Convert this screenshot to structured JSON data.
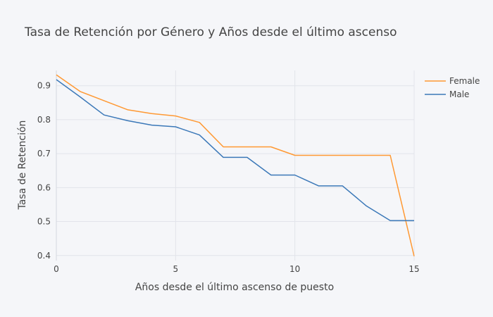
{
  "chart_data": {
    "type": "line",
    "title": "Tasa de Retención por Género y Años desde el último ascenso",
    "xlabel": "Años desde el último ascenso de puesto",
    "ylabel": "Tasa de Retención",
    "xlim": [
      0,
      15
    ],
    "ylim": [
      0.385,
      0.945
    ],
    "xticks": [
      0,
      5,
      10,
      15
    ],
    "yticks": [
      0.4,
      0.5,
      0.6,
      0.7,
      0.8,
      0.9
    ],
    "xtick_labels": [
      "0",
      "5",
      "10",
      "15"
    ],
    "ytick_labels": [
      "0.4",
      "0.5",
      "0.6",
      "0.7",
      "0.8",
      "0.9"
    ],
    "grid": true,
    "legend_position": "top-right",
    "series": [
      {
        "name": "Female",
        "color": "#ff9933",
        "x": [
          0,
          1,
          2,
          3,
          4,
          5,
          6,
          7,
          8,
          9,
          10,
          11,
          12,
          13,
          14,
          15
        ],
        "y": [
          0.932,
          0.883,
          0.856,
          0.829,
          0.818,
          0.811,
          0.792,
          0.72,
          0.72,
          0.72,
          0.695,
          0.695,
          0.695,
          0.695,
          0.695,
          0.398
        ]
      },
      {
        "name": "Male",
        "color": "#3b78b8",
        "x": [
          0,
          1,
          2,
          3,
          4,
          5,
          6,
          7,
          8,
          9,
          10,
          11,
          12,
          13,
          14,
          15
        ],
        "y": [
          0.918,
          0.867,
          0.814,
          0.797,
          0.784,
          0.779,
          0.755,
          0.689,
          0.689,
          0.637,
          0.637,
          0.605,
          0.605,
          0.546,
          0.503,
          0.503
        ]
      }
    ]
  }
}
